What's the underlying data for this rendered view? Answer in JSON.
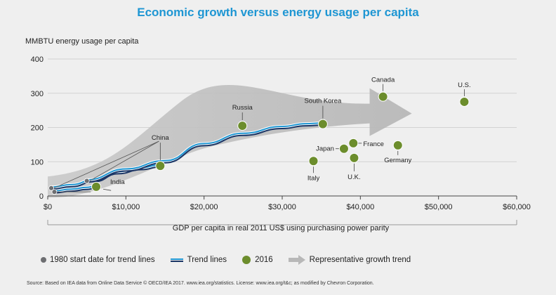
{
  "chart_data": {
    "type": "scatter",
    "title": "Economic growth versus energy usage per capita",
    "ylabel": "MMBTU energy usage per capita",
    "xlabel": "GDP per capita in real 2011 US$ using purchasing power parity",
    "xlim": [
      0,
      60000
    ],
    "ylim": [
      0,
      400
    ],
    "x_ticks": [
      0,
      10000,
      20000,
      30000,
      40000,
      50000,
      60000
    ],
    "x_tick_labels": [
      "$0",
      "$10,000",
      "$20,000",
      "$30,000",
      "$40,000",
      "$50,000",
      "$60,000"
    ],
    "y_ticks": [
      0,
      100,
      200,
      300,
      400
    ],
    "y_tick_labels": [
      "0",
      "100",
      "200",
      "300",
      "400"
    ],
    "points_2016": [
      {
        "label": "India",
        "x": 6200,
        "y": 27
      },
      {
        "label": "China",
        "x": 14400,
        "y": 88
      },
      {
        "label": "Russia",
        "x": 24900,
        "y": 205
      },
      {
        "label": "South Korea",
        "x": 35200,
        "y": 210
      },
      {
        "label": "Italy",
        "x": 34000,
        "y": 102
      },
      {
        "label": "Japan",
        "x": 37900,
        "y": 138
      },
      {
        "label": "France",
        "x": 39100,
        "y": 154
      },
      {
        "label": "U.K.",
        "x": 39200,
        "y": 111
      },
      {
        "label": "Germany",
        "x": 44800,
        "y": 148
      },
      {
        "label": "Canada",
        "x": 42900,
        "y": 290
      },
      {
        "label": "U.S.",
        "x": 53300,
        "y": 275
      }
    ],
    "start_points_1980": [
      {
        "label": "China",
        "x": 450,
        "y": 23
      },
      {
        "label": "India",
        "x": 850,
        "y": 12
      },
      {
        "label": "South Korea",
        "x": 5000,
        "y": 44
      }
    ],
    "trend_lines": [
      {
        "name": "India",
        "points": [
          [
            850,
            12
          ],
          [
            3000,
            17
          ],
          [
            5000,
            22
          ],
          [
            6200,
            27
          ]
        ]
      },
      {
        "name": "China",
        "points": [
          [
            450,
            23
          ],
          [
            3000,
            30
          ],
          [
            6000,
            45
          ],
          [
            9000,
            68
          ],
          [
            12000,
            80
          ],
          [
            14400,
            88
          ]
        ]
      },
      {
        "name": "South Korea",
        "points": [
          [
            5000,
            44
          ],
          [
            10000,
            76
          ],
          [
            15000,
            100
          ],
          [
            20000,
            150
          ],
          [
            25000,
            180
          ],
          [
            30000,
            200
          ],
          [
            33000,
            208
          ],
          [
            35200,
            210
          ]
        ]
      }
    ],
    "growth_arrow": {
      "from": [
        0,
        20
      ],
      "to": [
        44600,
        245
      ]
    },
    "legend": {
      "start": "1980 start date for trend lines",
      "trend": "Trend lines",
      "points": "2016",
      "arrow": "Representative growth trend"
    },
    "source": "Source: Based on IEA data from Online Data Service © OECD/IEA 2017. www.iea.org/statistics. License: www.iea.org/t&c; as modified by Chevron Corporation."
  }
}
